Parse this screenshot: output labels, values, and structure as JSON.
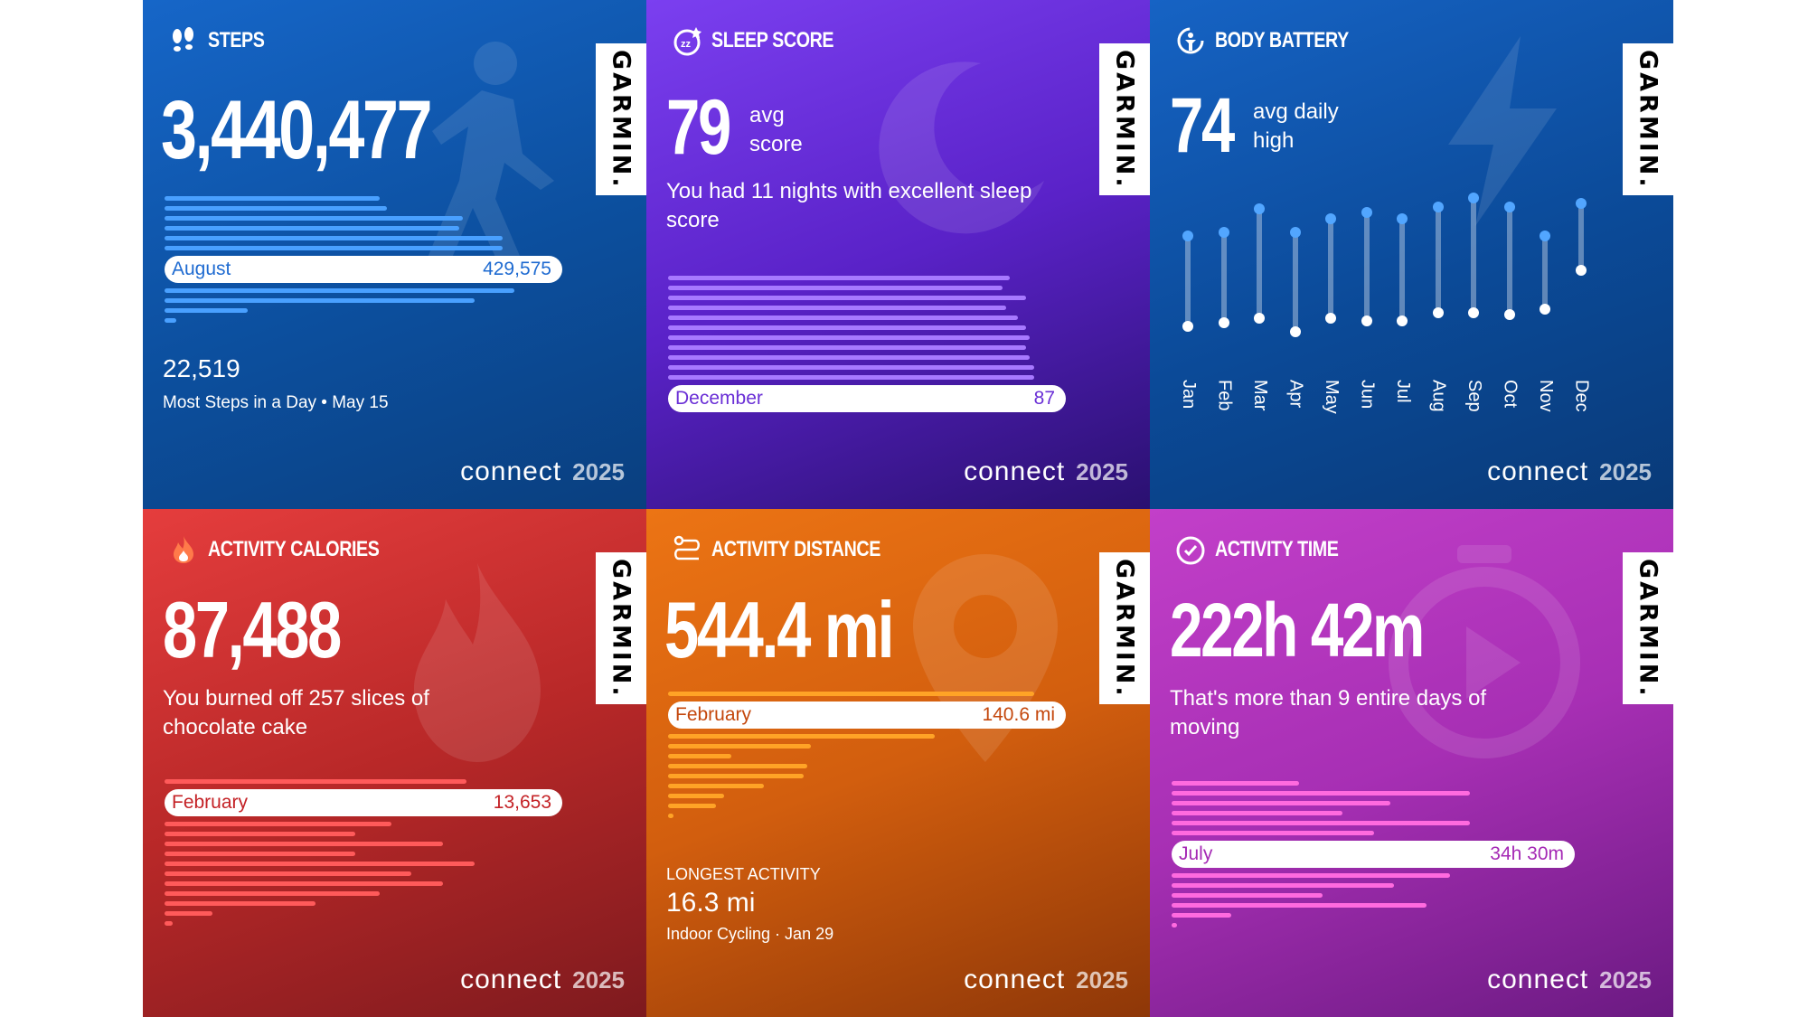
{
  "brand": "connect",
  "year": "2025",
  "garmin_label": "GARMIN.",
  "colors": {
    "steps_bar": "#49a0ff",
    "steps_text": "#1f6bd1",
    "sleep_bar": "#a779ff",
    "sleep_text": "#6a2fd6",
    "cal_bar": "#ff5a5a",
    "cal_text": "#c42226",
    "dist_bar": "#ffa326",
    "dist_text": "#c4470c",
    "time_bar": "#ff6adf",
    "time_text": "#a52ab5",
    "battery_top": "#52a6ff"
  },
  "steps": {
    "title": "STEPS",
    "icon": "footprints-icon",
    "total": "3,440,477",
    "bars": [
      0.54,
      0.56,
      0.75,
      0.74,
      0.85,
      0.85
    ],
    "bars_after": [
      0.88,
      0.78,
      0.21,
      0.03
    ],
    "highlight": {
      "label": "August",
      "value": "429,575"
    },
    "most_value": "22,519",
    "most_caption": "Most Steps in a Day • May 15"
  },
  "sleep": {
    "title": "SLEEP SCORE",
    "icon": "sleep-zz-icon",
    "score": "79",
    "score_label1": "avg",
    "score_label2": "score",
    "note": "You had 11 nights with excellent sleep score",
    "bars": [
      0.86,
      0.84,
      0.9,
      0.85,
      0.88,
      0.9,
      0.91,
      0.9,
      0.91,
      0.92,
      0.92
    ],
    "highlight": {
      "label": "December",
      "value": "87"
    }
  },
  "battery": {
    "title": "BODY BATTERY",
    "icon": "body-battery-icon",
    "value": "74",
    "label1": "avg daily",
    "label2": "high",
    "months": [
      {
        "m": "Jan",
        "high": 83,
        "low": 30
      },
      {
        "m": "Feb",
        "high": 85,
        "low": 32
      },
      {
        "m": "Mar",
        "high": 99,
        "low": 35
      },
      {
        "m": "Apr",
        "high": 85,
        "low": 27
      },
      {
        "m": "May",
        "high": 93,
        "low": 35
      },
      {
        "m": "Jun",
        "high": 97,
        "low": 33
      },
      {
        "m": "Jul",
        "high": 93,
        "low": 33
      },
      {
        "m": "Aug",
        "high": 100,
        "low": 38
      },
      {
        "m": "Sep",
        "high": 105,
        "low": 38
      },
      {
        "m": "Oct",
        "high": 100,
        "low": 37
      },
      {
        "m": "Nov",
        "high": 83,
        "low": 40
      },
      {
        "m": "Dec",
        "high": 102,
        "low": 63
      }
    ]
  },
  "calories": {
    "title": "ACTIVITY CALORIES",
    "icon": "flame-icon",
    "total": "87,488",
    "note": "You burned off 257 slices of chocolate cake",
    "bars": [
      0.76
    ],
    "bars_after": [
      0.57,
      0.48,
      0.7,
      0.48,
      0.78,
      0.62,
      0.7,
      0.54,
      0.38,
      0.12,
      0.02
    ],
    "highlight": {
      "label": "February",
      "value": "13,653"
    }
  },
  "distance": {
    "title": "ACTIVITY DISTANCE",
    "icon": "route-icon",
    "total": "544.4 mi",
    "bars": [
      0.92
    ],
    "bars_after": [
      0.67,
      0.36,
      0.16,
      0.35,
      0.34,
      0.24,
      0.14,
      0.12,
      0.01
    ],
    "highlight": {
      "label": "February",
      "value": "140.6 mi"
    },
    "longest_label": "LONGEST ACTIVITY",
    "longest_value": "16.3 mi",
    "longest_caption": "Indoor Cycling · Jan 29"
  },
  "time": {
    "title": "ACTIVITY TIME",
    "icon": "stopwatch-icon",
    "total": "222h 42m",
    "note": "That's more than 9 entire days of moving",
    "bars": [
      0.32,
      0.75,
      0.55,
      0.43,
      0.75,
      0.51
    ],
    "bars_after": [
      0.7,
      0.56,
      0.38,
      0.64,
      0.15,
      0.01
    ],
    "highlight": {
      "label": "July",
      "value": "34h 30m"
    }
  }
}
